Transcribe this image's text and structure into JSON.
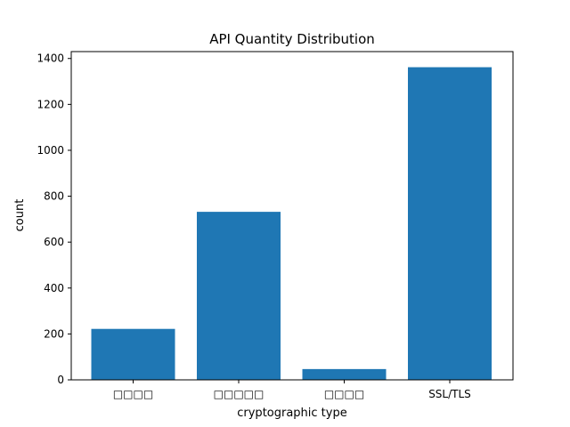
{
  "chart_data": {
    "type": "bar",
    "title": "API Quantity Distribution",
    "xlabel": "cryptographic type",
    "ylabel": "count",
    "categories": [
      "□□□□",
      "□□□□□",
      "□□□□",
      "SSL/TLS"
    ],
    "values": [
      222,
      732,
      47,
      1362
    ],
    "ylim": [
      0,
      1430
    ],
    "yticks": [
      0,
      200,
      400,
      600,
      800,
      1000,
      1200,
      1400
    ],
    "bar_color": "#1f77b4",
    "grid": false,
    "legend": "none"
  }
}
